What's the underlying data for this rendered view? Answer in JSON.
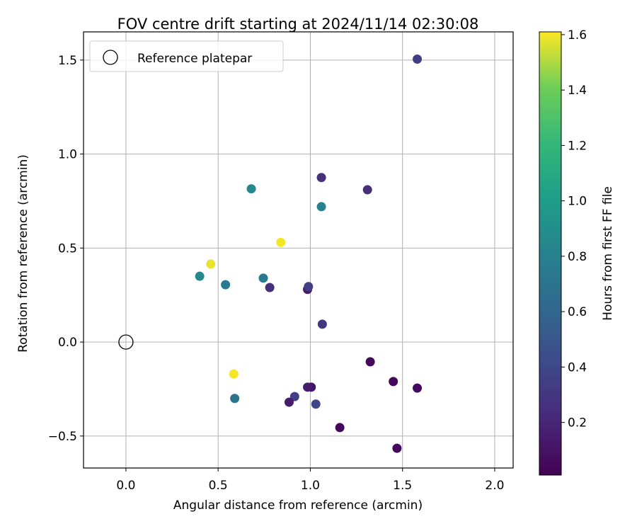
{
  "chart_data": {
    "type": "scatter",
    "title": "FOV centre drift starting at 2024/11/14 02:30:08",
    "xlabel": "Angular distance from reference (arcmin)",
    "ylabel": "Rotation from reference (arcmin)",
    "xlim": [
      -0.23,
      2.1
    ],
    "ylim": [
      -0.67,
      1.65
    ],
    "xticks": [
      0.0,
      0.5,
      1.0,
      1.5,
      2.0
    ],
    "xtick_labels": [
      "0.0",
      "0.5",
      "1.0",
      "1.5",
      "2.0"
    ],
    "yticks": [
      -0.5,
      0.0,
      0.5,
      1.0,
      1.5
    ],
    "ytick_labels": [
      "−0.5",
      "0.0",
      "0.5",
      "1.0",
      "1.5"
    ],
    "grid": true,
    "legend": {
      "location": "upper-left",
      "entries": [
        "Reference platepar"
      ]
    },
    "reference_point": {
      "x": 0.0,
      "y": 0.0,
      "label": "Reference platepar"
    },
    "colorbar": {
      "label": "Hours from first FF file",
      "colormap": "viridis",
      "range": [
        0.01,
        1.61
      ],
      "ticks": [
        0.2,
        0.4,
        0.6,
        0.8,
        1.0,
        1.2,
        1.4,
        1.6
      ],
      "tick_labels": [
        "0.2",
        "0.4",
        "0.6",
        "0.8",
        "1.0",
        "1.2",
        "1.4",
        "1.6"
      ]
    },
    "points": [
      {
        "x": 1.58,
        "y": 1.505,
        "hours": 0.35
      },
      {
        "x": 1.06,
        "y": 0.875,
        "hours": 0.25
      },
      {
        "x": 1.31,
        "y": 0.81,
        "hours": 0.25
      },
      {
        "x": 0.68,
        "y": 0.815,
        "hours": 0.85
      },
      {
        "x": 1.06,
        "y": 0.72,
        "hours": 0.8
      },
      {
        "x": 0.84,
        "y": 0.53,
        "hours": 1.6
      },
      {
        "x": 0.46,
        "y": 0.415,
        "hours": 1.58
      },
      {
        "x": 0.4,
        "y": 0.35,
        "hours": 0.85
      },
      {
        "x": 0.54,
        "y": 0.305,
        "hours": 0.75
      },
      {
        "x": 0.745,
        "y": 0.34,
        "hours": 0.75
      },
      {
        "x": 0.78,
        "y": 0.29,
        "hours": 0.25
      },
      {
        "x": 0.985,
        "y": 0.28,
        "hours": 0.15
      },
      {
        "x": 0.99,
        "y": 0.295,
        "hours": 0.35
      },
      {
        "x": 1.065,
        "y": 0.095,
        "hours": 0.3
      },
      {
        "x": 1.325,
        "y": -0.105,
        "hours": 0.05
      },
      {
        "x": 0.585,
        "y": -0.17,
        "hours": 1.6
      },
      {
        "x": 0.59,
        "y": -0.3,
        "hours": 0.7
      },
      {
        "x": 1.45,
        "y": -0.21,
        "hours": 0.05
      },
      {
        "x": 1.58,
        "y": -0.245,
        "hours": 0.05
      },
      {
        "x": 1.005,
        "y": -0.24,
        "hours": 0.1
      },
      {
        "x": 0.985,
        "y": -0.24,
        "hours": 0.15
      },
      {
        "x": 0.915,
        "y": -0.29,
        "hours": 0.35
      },
      {
        "x": 0.885,
        "y": -0.32,
        "hours": 0.15
      },
      {
        "x": 1.03,
        "y": -0.33,
        "hours": 0.4
      },
      {
        "x": 1.16,
        "y": -0.455,
        "hours": 0.05
      },
      {
        "x": 1.47,
        "y": -0.565,
        "hours": 0.05
      }
    ]
  }
}
